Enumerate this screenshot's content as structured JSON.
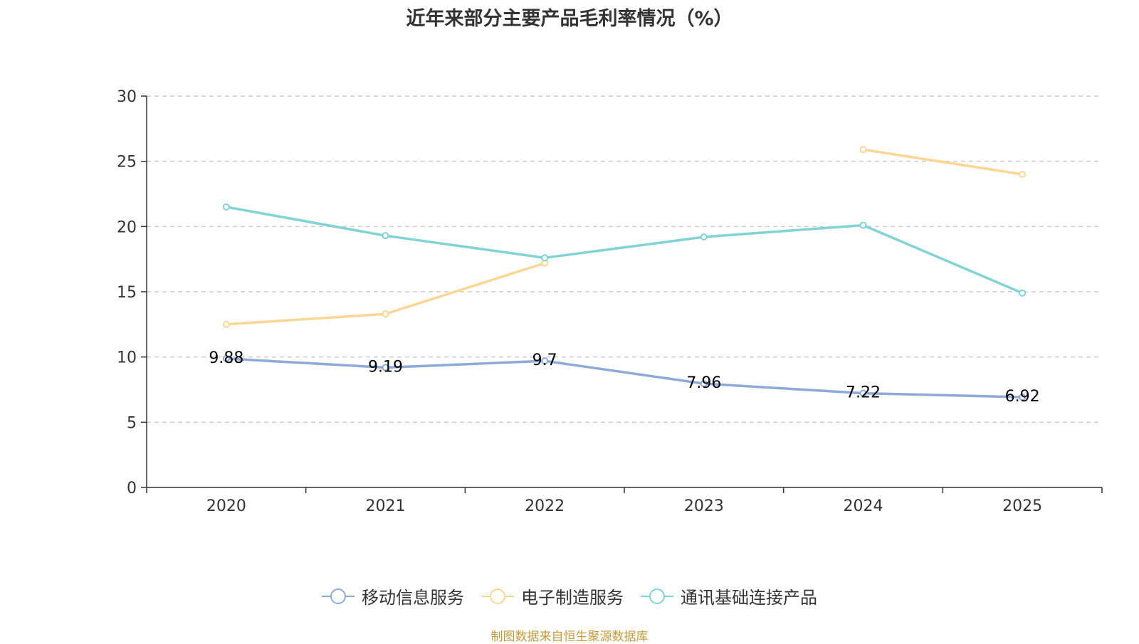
{
  "chart_data": {
    "type": "line",
    "title": "近年来部分主要产品毛利率情况（%）",
    "categories": [
      "2020",
      "2021",
      "2022",
      "2023",
      "2024",
      "2025"
    ],
    "ylim": [
      0,
      30
    ],
    "yticks": [
      0,
      5,
      10,
      15,
      20,
      25,
      30
    ],
    "grid": true,
    "legend_position": "bottom",
    "series": [
      {
        "name": "移动信息服务",
        "color": "#8eaad8",
        "values": [
          9.88,
          9.19,
          9.7,
          7.96,
          7.22,
          6.92
        ],
        "labels": [
          "9.88",
          "9.19",
          "9.7",
          "7.96",
          "7.22",
          "6.92"
        ]
      },
      {
        "name": "电子制造服务",
        "color": "#fad794",
        "values": [
          12.5,
          13.3,
          17.2,
          null,
          25.9,
          24.0
        ]
      },
      {
        "name": "通讯基础连接产品",
        "color": "#82d3d3",
        "values": [
          21.5,
          19.3,
          17.6,
          19.2,
          20.1,
          14.9
        ]
      }
    ]
  },
  "source_note": "制图数据来自恒生聚源数据库"
}
